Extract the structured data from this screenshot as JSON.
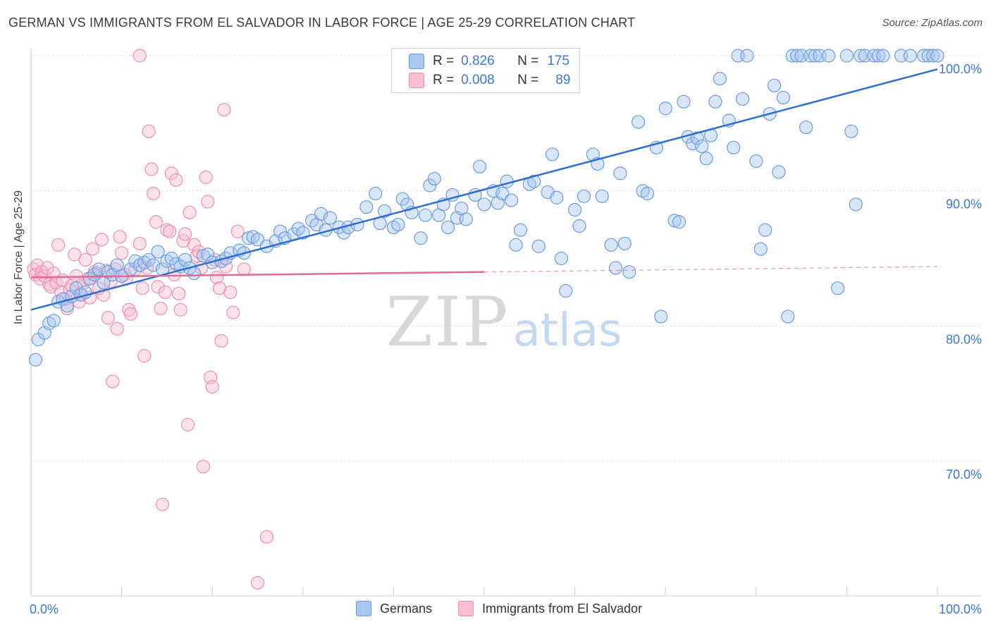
{
  "title": "GERMAN VS IMMIGRANTS FROM EL SALVADOR IN LABOR FORCE | AGE 25-29 CORRELATION CHART",
  "source": "Source: ZipAtlas.com",
  "watermark": {
    "zip": "ZIP",
    "atlas": "atlas"
  },
  "colors": {
    "blue_fill": "#a9c8f0",
    "blue_stroke": "#6b9be0",
    "blue_line": "#2f6fd1",
    "pink_fill": "#f7bfd0",
    "pink_stroke": "#ee8fae",
    "pink_line": "#e36a96",
    "axis_text": "#3b78d8",
    "grid": "#e3e3e3"
  },
  "stats": {
    "r_label": "R =",
    "n_label": "N =",
    "series1": {
      "r": "0.826",
      "n": "175"
    },
    "series2": {
      "r": "0.008",
      "n": "89"
    }
  },
  "chart_data": {
    "type": "scatter",
    "title": "GERMAN VS IMMIGRANTS FROM EL SALVADOR IN LABOR FORCE | AGE 25-29 CORRELATION CHART",
    "xlabel": "",
    "ylabel": "In Labor Force | Age 25-29",
    "xlim": [
      0,
      100
    ],
    "ylim": [
      60.5,
      100.5
    ],
    "x_tick_labels": [
      "0.0%",
      "100.0%"
    ],
    "y_ticks": [
      70,
      80,
      90,
      100
    ],
    "y_tick_labels": [
      "70.0%",
      "80.0%",
      "90.0%",
      "100.0%"
    ],
    "grid": true,
    "legend_position": "bottom",
    "series": [
      {
        "name": "Germans",
        "color": "#6b9be0",
        "r": 0.826,
        "n": 175,
        "trend": {
          "x": [
            0,
            100
          ],
          "y": [
            81.2,
            99.0
          ]
        },
        "points": [
          [
            0.5,
            77.5
          ],
          [
            0.8,
            79
          ],
          [
            1.5,
            79.5
          ],
          [
            2,
            80.2
          ],
          [
            2.5,
            80.4
          ],
          [
            3,
            81.8
          ],
          [
            3.5,
            82.0
          ],
          [
            4,
            81.5
          ],
          [
            4.5,
            82.2
          ],
          [
            5,
            82.8
          ],
          [
            5.5,
            82.3
          ],
          [
            6,
            82.5
          ],
          [
            6.5,
            83.5
          ],
          [
            7,
            83.8
          ],
          [
            7.5,
            84.2
          ],
          [
            8,
            83.2
          ],
          [
            8.5,
            84.0
          ],
          [
            9,
            83.8
          ],
          [
            9.5,
            84.5
          ],
          [
            10,
            83.7
          ],
          [
            11,
            84.2
          ],
          [
            11.5,
            84.8
          ],
          [
            12,
            84.5
          ],
          [
            12.5,
            84.7
          ],
          [
            13,
            84.9
          ],
          [
            13.5,
            84.5
          ],
          [
            14,
            85.5
          ],
          [
            14.5,
            84.2
          ],
          [
            15,
            84.8
          ],
          [
            15.5,
            85.0
          ],
          [
            16,
            84.6
          ],
          [
            16.5,
            84.4
          ],
          [
            17,
            84.9
          ],
          [
            17.5,
            84.3
          ],
          [
            18,
            83.9
          ],
          [
            19,
            85.2
          ],
          [
            19.5,
            85.3
          ],
          [
            20,
            84.7
          ],
          [
            21,
            84.8
          ],
          [
            21.5,
            85.0
          ],
          [
            22,
            85.4
          ],
          [
            23,
            85.6
          ],
          [
            23.5,
            85.4
          ],
          [
            24,
            86.5
          ],
          [
            24.5,
            86.6
          ],
          [
            25,
            86.4
          ],
          [
            26,
            85.9
          ],
          [
            27,
            86.3
          ],
          [
            27.5,
            87.0
          ],
          [
            28,
            86.5
          ],
          [
            29,
            86.8
          ],
          [
            29.5,
            87.2
          ],
          [
            30,
            86.9
          ],
          [
            31,
            87.8
          ],
          [
            31.5,
            87.5
          ],
          [
            32,
            88.3
          ],
          [
            32.5,
            87.1
          ],
          [
            33,
            88.0
          ],
          [
            34,
            87.3
          ],
          [
            34.5,
            86.9
          ],
          [
            35,
            87.3
          ],
          [
            36,
            87.5
          ],
          [
            37,
            88.8
          ],
          [
            38,
            89.8
          ],
          [
            38.5,
            87.6
          ],
          [
            39,
            88.5
          ],
          [
            40,
            87.3
          ],
          [
            40.5,
            87.5
          ],
          [
            41,
            89.4
          ],
          [
            41.5,
            89.0
          ],
          [
            42,
            88.4
          ],
          [
            43,
            86.5
          ],
          [
            43.5,
            88.2
          ],
          [
            44,
            90.4
          ],
          [
            44.5,
            90.9
          ],
          [
            45,
            88.2
          ],
          [
            45.5,
            89.0
          ],
          [
            46,
            87.3
          ],
          [
            46.5,
            89.7
          ],
          [
            47,
            88.0
          ],
          [
            47.5,
            88.7
          ],
          [
            48,
            87.9
          ],
          [
            49,
            89.7
          ],
          [
            49.5,
            91.8
          ],
          [
            50,
            89.0
          ],
          [
            51,
            90.0
          ],
          [
            51.5,
            89.1
          ],
          [
            52,
            89.8
          ],
          [
            52.5,
            90.7
          ],
          [
            53,
            89.3
          ],
          [
            53.5,
            86.0
          ],
          [
            54,
            87.1
          ],
          [
            55,
            90.5
          ],
          [
            55.5,
            90.7
          ],
          [
            56,
            85.9
          ],
          [
            57,
            89.9
          ],
          [
            57.5,
            92.7
          ],
          [
            58,
            89.5
          ],
          [
            58.5,
            85.0
          ],
          [
            59,
            82.6
          ],
          [
            60,
            88.6
          ],
          [
            60.5,
            87.4
          ],
          [
            61,
            89.6
          ],
          [
            62,
            92.7
          ],
          [
            62.5,
            92.0
          ],
          [
            63,
            89.6
          ],
          [
            64,
            86.0
          ],
          [
            64.5,
            84.3
          ],
          [
            65,
            91.3
          ],
          [
            65.5,
            86.1
          ],
          [
            66,
            84.0
          ],
          [
            67,
            95.1
          ],
          [
            67.5,
            90.0
          ],
          [
            68,
            89.8
          ],
          [
            69,
            93.2
          ],
          [
            69.5,
            80.7
          ],
          [
            70,
            96.1
          ],
          [
            71,
            87.8
          ],
          [
            71.5,
            87.7
          ],
          [
            72,
            96.6
          ],
          [
            72.5,
            94.0
          ],
          [
            73,
            93.5
          ],
          [
            73.5,
            93.9
          ],
          [
            74,
            93.3
          ],
          [
            74.5,
            92.4
          ],
          [
            75,
            94.1
          ],
          [
            75.5,
            96.6
          ],
          [
            76,
            98.3
          ],
          [
            77,
            95.2
          ],
          [
            77.5,
            93.2
          ],
          [
            78,
            100
          ],
          [
            78.5,
            96.8
          ],
          [
            79,
            100
          ],
          [
            80,
            92.2
          ],
          [
            80.5,
            85.7
          ],
          [
            81,
            87.1
          ],
          [
            81.5,
            95.7
          ],
          [
            82,
            97.8
          ],
          [
            82.5,
            91.4
          ],
          [
            83,
            96.9
          ],
          [
            83.5,
            80.7
          ],
          [
            84,
            100
          ],
          [
            84.5,
            100
          ],
          [
            85,
            100
          ],
          [
            85.5,
            94.7
          ],
          [
            86,
            100
          ],
          [
            86.5,
            100
          ],
          [
            87,
            100
          ],
          [
            88,
            100
          ],
          [
            89,
            82.8
          ],
          [
            90,
            100
          ],
          [
            90.5,
            94.4
          ],
          [
            91,
            89.0
          ],
          [
            91.5,
            100
          ],
          [
            92,
            100
          ],
          [
            93,
            100
          ],
          [
            93.5,
            100
          ],
          [
            94,
            100
          ],
          [
            96,
            100
          ],
          [
            97,
            100
          ],
          [
            98.5,
            100
          ],
          [
            99,
            100
          ],
          [
            99.5,
            100
          ],
          [
            100,
            100
          ]
        ]
      },
      {
        "name": "Immigrants from El Salvador",
        "color": "#ee8fae",
        "r": 0.008,
        "n": 89,
        "trend": {
          "x": [
            0,
            50
          ],
          "y": [
            83.6,
            84.0
          ]
        },
        "trend_dashed": {
          "x": [
            50,
            100
          ],
          "y": [
            84.0,
            84.4
          ]
        },
        "points": [
          [
            0.3,
            84.2
          ],
          [
            0.5,
            83.8
          ],
          [
            0.7,
            84.5
          ],
          [
            1,
            83.5
          ],
          [
            1.2,
            84.0
          ],
          [
            1.5,
            83.7
          ],
          [
            1.8,
            84.3
          ],
          [
            2,
            83.1
          ],
          [
            2.2,
            82.9
          ],
          [
            2.5,
            83.9
          ],
          [
            2.8,
            83.2
          ],
          [
            3,
            86.0
          ],
          [
            3.3,
            82.5
          ],
          [
            3.5,
            83.4
          ],
          [
            3.8,
            82.0
          ],
          [
            4,
            81.3
          ],
          [
            4.3,
            82.7
          ],
          [
            4.5,
            83.0
          ],
          [
            4.8,
            85.3
          ],
          [
            5,
            83.7
          ],
          [
            5.3,
            81.8
          ],
          [
            5.5,
            82.4
          ],
          [
            5.8,
            83.2
          ],
          [
            6,
            84.9
          ],
          [
            6.3,
            83.5
          ],
          [
            6.5,
            82.1
          ],
          [
            6.8,
            85.7
          ],
          [
            7,
            84.0
          ],
          [
            7.3,
            83.9
          ],
          [
            7.5,
            82.8
          ],
          [
            7.8,
            86.4
          ],
          [
            8,
            82.3
          ],
          [
            8.3,
            84.1
          ],
          [
            8.5,
            80.6
          ],
          [
            8.8,
            83.3
          ],
          [
            9,
            75.9
          ],
          [
            9.3,
            84.2
          ],
          [
            9.5,
            79.8
          ],
          [
            9.8,
            86.6
          ],
          [
            10,
            85.4
          ],
          [
            10.3,
            83.8
          ],
          [
            10.5,
            83.5
          ],
          [
            10.8,
            81.2
          ],
          [
            11,
            80.9
          ],
          [
            11.5,
            84.2
          ],
          [
            12,
            86.1
          ],
          [
            12.3,
            82.8
          ],
          [
            12.5,
            77.8
          ],
          [
            12.8,
            84.3
          ],
          [
            13,
            94.4
          ],
          [
            13.3,
            91.6
          ],
          [
            13.5,
            89.8
          ],
          [
            13.8,
            87.7
          ],
          [
            14,
            82.9
          ],
          [
            14.3,
            81.3
          ],
          [
            14.5,
            66.8
          ],
          [
            14.8,
            82.5
          ],
          [
            15,
            87.1
          ],
          [
            15.3,
            87.0
          ],
          [
            15.5,
            91.3
          ],
          [
            15.8,
            83.8
          ],
          [
            16,
            90.8
          ],
          [
            16.3,
            82.4
          ],
          [
            16.5,
            81.2
          ],
          [
            16.8,
            86.3
          ],
          [
            17,
            86.8
          ],
          [
            17.3,
            72.7
          ],
          [
            17.5,
            88.4
          ],
          [
            18,
            86.0
          ],
          [
            18.3,
            85.2
          ],
          [
            18.5,
            85.5
          ],
          [
            18.8,
            84.3
          ],
          [
            19,
            69.6
          ],
          [
            19.3,
            91.0
          ],
          [
            19.5,
            89.2
          ],
          [
            19.8,
            76.2
          ],
          [
            20,
            75.5
          ],
          [
            20.3,
            84.9
          ],
          [
            20.5,
            83.6
          ],
          [
            20.8,
            82.8
          ],
          [
            21,
            78.9
          ],
          [
            21.3,
            96.0
          ],
          [
            21.5,
            84.4
          ],
          [
            22,
            82.5
          ],
          [
            22.3,
            81.0
          ],
          [
            22.8,
            87.0
          ],
          [
            23.5,
            84.2
          ],
          [
            25,
            61.0
          ],
          [
            26,
            64.4
          ],
          [
            12,
            100
          ]
        ]
      }
    ]
  },
  "legend": {
    "item1": "Germans",
    "item2": "Immigrants from El Salvador"
  }
}
